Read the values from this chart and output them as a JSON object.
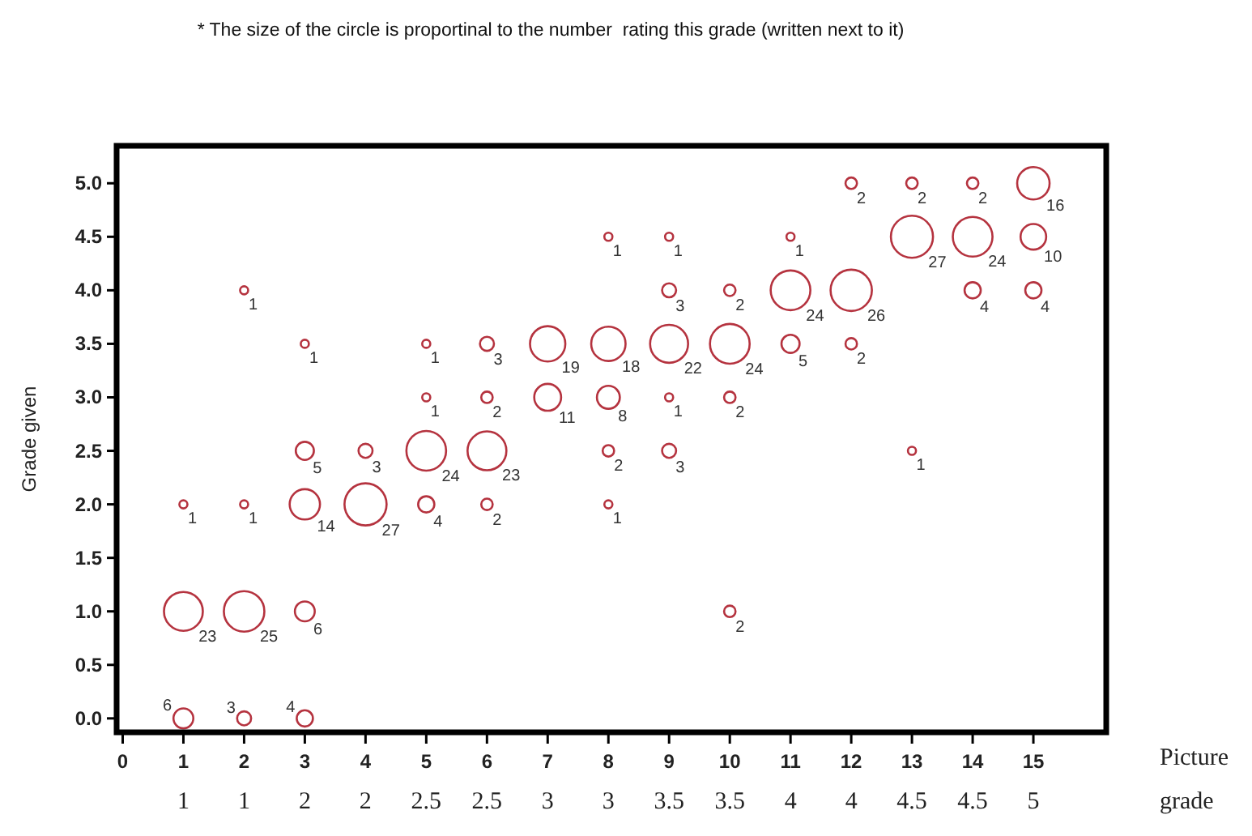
{
  "chart_data": {
    "type": "bubble",
    "title": "* The size of the circle is proportinal to the number  rating this grade (written next to it)",
    "xlabel": "Picture grade",
    "ylabel": "Grade given",
    "xlim": [
      -0.1,
      16.2
    ],
    "xticks": [
      0,
      1,
      2,
      3,
      4,
      5,
      6,
      7,
      8,
      9,
      10,
      11,
      12,
      13,
      14,
      15
    ],
    "annotations": [
      "1",
      "1",
      "2",
      "2",
      "2.5",
      "2.5",
      "3",
      "3",
      "3.5",
      "3.5",
      "4",
      "4",
      "4.5",
      "4.5",
      "5"
    ],
    "ylim": [
      -0.13,
      5.35
    ],
    "yticks": [
      {
        "value": 0,
        "label": "0.0"
      },
      {
        "value": 0.5,
        "label": "0.5"
      },
      {
        "value": 1,
        "label": "1.0"
      },
      {
        "value": 1.5,
        "label": "1.5"
      },
      {
        "value": 2,
        "label": "2.0"
      },
      {
        "value": 2.5,
        "label": "2.5"
      },
      {
        "value": 3,
        "label": "3.0"
      },
      {
        "value": 3.5,
        "label": "3.5"
      },
      {
        "value": 4,
        "label": "4.0"
      },
      {
        "value": 4.5,
        "label": "4.5"
      },
      {
        "value": 5,
        "label": "5.0"
      }
    ],
    "grid": false,
    "marker": "circle",
    "series": [
      {
        "color": "#b5333f",
        "x": [
          1,
          1,
          1,
          2,
          2,
          2,
          2,
          3,
          3,
          3,
          3,
          3,
          4,
          4,
          5,
          5,
          5,
          5,
          6,
          6,
          6,
          6,
          7,
          7,
          8,
          8,
          8,
          8,
          8,
          9,
          9,
          9,
          9,
          9,
          10,
          10,
          10,
          10,
          11,
          11,
          11,
          12,
          12,
          12,
          13,
          13,
          13,
          14,
          14,
          14,
          15,
          15,
          15
        ],
        "values": [
          0,
          1,
          2,
          0,
          1,
          2,
          4,
          0,
          1,
          2,
          2.5,
          3.5,
          2,
          2.5,
          2,
          2.5,
          3,
          3.5,
          2,
          2.5,
          3,
          3.5,
          3,
          3.5,
          2,
          2.5,
          3,
          3.5,
          4.5,
          2.5,
          3,
          3.5,
          4,
          4.5,
          1,
          3,
          3.5,
          4,
          3.5,
          4,
          4.5,
          3.5,
          4,
          5,
          2.5,
          4.5,
          5,
          4,
          4.5,
          5,
          4,
          4.5,
          5
        ],
        "sizes": [
          6,
          23,
          1,
          3,
          25,
          1,
          1,
          4,
          6,
          14,
          5,
          1,
          27,
          3,
          4,
          24,
          1,
          1,
          2,
          23,
          2,
          3,
          11,
          19,
          1,
          2,
          8,
          18,
          1,
          3,
          1,
          22,
          3,
          1,
          2,
          2,
          24,
          2,
          5,
          24,
          1,
          2,
          26,
          2,
          1,
          27,
          2,
          4,
          24,
          2,
          4,
          10,
          16
        ],
        "value_labels": [
          "6",
          "23",
          "1",
          "3",
          "25",
          "1",
          "1",
          "4",
          "6",
          "14",
          "5",
          "1",
          "27",
          "3",
          "4",
          "24",
          "1",
          "1",
          "2",
          "23",
          "2",
          "3",
          "11",
          "19",
          "1",
          "2",
          "8",
          "18",
          "1",
          "3",
          "1",
          "22",
          "3",
          "1",
          "2",
          "2",
          "24",
          "2",
          "5",
          "24",
          "1",
          "2",
          "26",
          "2",
          "1",
          "27",
          "2",
          "4",
          "24",
          "2",
          "4",
          "10",
          "16"
        ]
      }
    ]
  }
}
